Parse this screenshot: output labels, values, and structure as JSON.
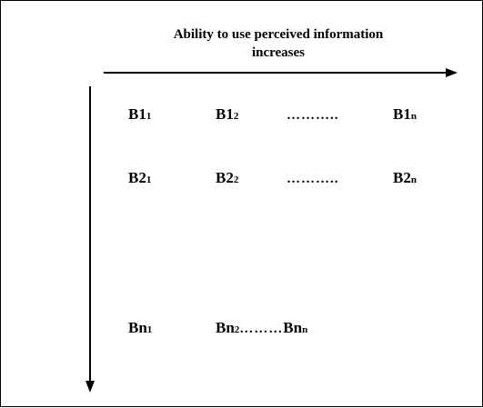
{
  "heading": {
    "line1": "Ability to use perceived information",
    "line2": "increases"
  },
  "grid": {
    "row1": {
      "c1_main": "B1",
      "c1_sub": "1",
      "c2_main": "B1",
      "c2_sub": "2",
      "dots": "………..",
      "cn_main": "B1",
      "cn_sub": "n"
    },
    "row2": {
      "c1_main": "B2",
      "c1_sub": "1",
      "c2_main": "B2",
      "c2_sub": "2",
      "dots": "………..",
      "cn_main": "B2",
      "cn_sub": "n"
    },
    "rown": {
      "c1_main": "Bn",
      "c1_sub": "1",
      "c2_main": "Bn",
      "c2_sub": "2",
      "dots": "………",
      "cn_main": "Bn",
      "cn_sub": "n"
    }
  },
  "colors": {
    "ink": "#000000",
    "background": "#ffffff"
  }
}
